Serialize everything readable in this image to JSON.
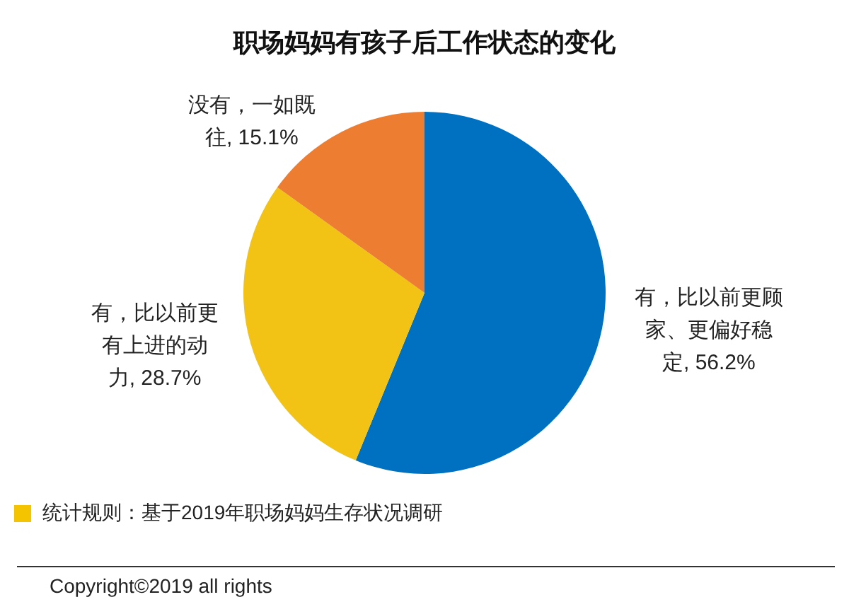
{
  "chart_data": {
    "type": "pie",
    "title": "职场妈妈有孩子后工作状态的变化",
    "categories": [
      "有，比以前更顾家、更偏好稳定",
      "有，比以前更有上进的动力",
      "没有，一如既往"
    ],
    "values": [
      56.2,
      28.7,
      15.1
    ],
    "value_labels": [
      "56.2%",
      "28.7%",
      "15.1%"
    ],
    "colors": [
      "#0070c0",
      "#f2c314",
      "#ed7d31"
    ],
    "annotations": [
      "统计规则：基于2019年职场妈妈生存状况调研",
      "Copyright©2019 all rights"
    ]
  }
}
